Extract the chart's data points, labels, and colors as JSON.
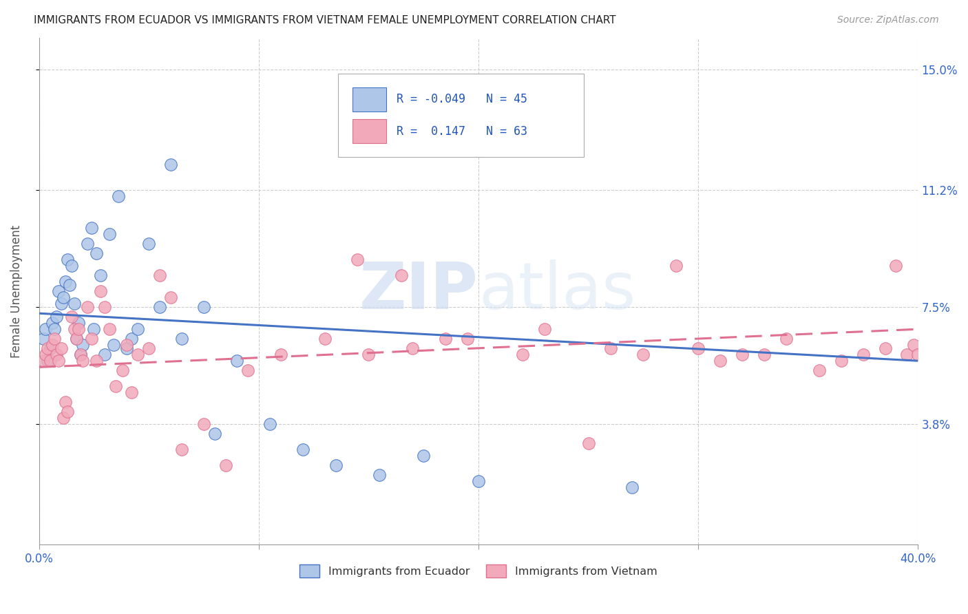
{
  "title": "IMMIGRANTS FROM ECUADOR VS IMMIGRANTS FROM VIETNAM FEMALE UNEMPLOYMENT CORRELATION CHART",
  "source": "Source: ZipAtlas.com",
  "ylabel": "Female Unemployment",
  "ytick_vals": [
    0.038,
    0.075,
    0.112,
    0.15
  ],
  "ytick_labels": [
    "3.8%",
    "7.5%",
    "11.2%",
    "15.0%"
  ],
  "xtick_vals": [
    0.0,
    0.1,
    0.2,
    0.3,
    0.4
  ],
  "xtick_labels_edge": [
    "0.0%",
    "40.0%"
  ],
  "color_ecuador": "#aec6e8",
  "color_vietnam": "#f2aabb",
  "line_color_ecuador": "#4472c4",
  "line_color_vietnam": "#e07090",
  "watermark_text": "ZIPatlas",
  "legend_label1": "Immigrants from Ecuador",
  "legend_label2": "Immigrants from Vietnam",
  "ecuador_x": [
    0.002,
    0.003,
    0.004,
    0.005,
    0.006,
    0.007,
    0.008,
    0.009,
    0.01,
    0.011,
    0.012,
    0.013,
    0.014,
    0.015,
    0.016,
    0.017,
    0.018,
    0.019,
    0.02,
    0.022,
    0.024,
    0.025,
    0.026,
    0.028,
    0.03,
    0.032,
    0.034,
    0.036,
    0.04,
    0.042,
    0.045,
    0.05,
    0.055,
    0.06,
    0.065,
    0.075,
    0.08,
    0.09,
    0.105,
    0.12,
    0.135,
    0.155,
    0.175,
    0.2,
    0.27
  ],
  "ecuador_y": [
    0.065,
    0.068,
    0.058,
    0.062,
    0.07,
    0.068,
    0.072,
    0.08,
    0.076,
    0.078,
    0.083,
    0.09,
    0.082,
    0.088,
    0.076,
    0.065,
    0.07,
    0.06,
    0.063,
    0.095,
    0.1,
    0.068,
    0.092,
    0.085,
    0.06,
    0.098,
    0.063,
    0.11,
    0.062,
    0.065,
    0.068,
    0.095,
    0.075,
    0.12,
    0.065,
    0.075,
    0.035,
    0.058,
    0.038,
    0.03,
    0.025,
    0.022,
    0.028,
    0.02,
    0.018
  ],
  "vietnam_x": [
    0.002,
    0.003,
    0.004,
    0.005,
    0.006,
    0.007,
    0.008,
    0.009,
    0.01,
    0.011,
    0.012,
    0.013,
    0.015,
    0.016,
    0.017,
    0.018,
    0.019,
    0.02,
    0.022,
    0.024,
    0.026,
    0.028,
    0.03,
    0.032,
    0.035,
    0.038,
    0.04,
    0.042,
    0.045,
    0.05,
    0.055,
    0.06,
    0.065,
    0.075,
    0.085,
    0.095,
    0.11,
    0.13,
    0.15,
    0.17,
    0.195,
    0.22,
    0.25,
    0.275,
    0.3,
    0.32,
    0.34,
    0.355,
    0.365,
    0.375,
    0.385,
    0.39,
    0.395,
    0.398,
    0.4,
    0.145,
    0.165,
    0.185,
    0.23,
    0.26,
    0.29,
    0.31,
    0.33
  ],
  "vietnam_y": [
    0.058,
    0.06,
    0.062,
    0.058,
    0.063,
    0.065,
    0.06,
    0.058,
    0.062,
    0.04,
    0.045,
    0.042,
    0.072,
    0.068,
    0.065,
    0.068,
    0.06,
    0.058,
    0.075,
    0.065,
    0.058,
    0.08,
    0.075,
    0.068,
    0.05,
    0.055,
    0.063,
    0.048,
    0.06,
    0.062,
    0.085,
    0.078,
    0.03,
    0.038,
    0.025,
    0.055,
    0.06,
    0.065,
    0.06,
    0.062,
    0.065,
    0.06,
    0.032,
    0.06,
    0.062,
    0.06,
    0.065,
    0.055,
    0.058,
    0.06,
    0.062,
    0.088,
    0.06,
    0.063,
    0.06,
    0.09,
    0.085,
    0.065,
    0.068,
    0.062,
    0.088,
    0.058,
    0.06
  ],
  "ecuador_trend_x": [
    0.0,
    0.4
  ],
  "ecuador_trend_y": [
    0.073,
    0.058
  ],
  "vietnam_trend_x": [
    0.0,
    0.4
  ],
  "vietnam_trend_y": [
    0.056,
    0.068
  ]
}
